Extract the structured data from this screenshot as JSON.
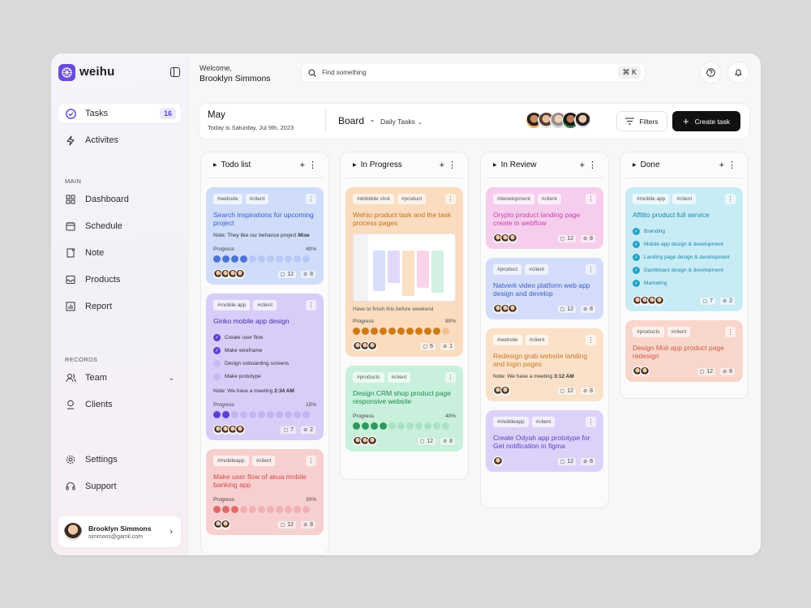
{
  "app": {
    "brand": "weihu"
  },
  "nav": {
    "tasks": {
      "label": "Tasks",
      "badge": "16"
    },
    "activities": {
      "label": "Activites"
    },
    "main_label": "MAIN",
    "main": [
      "Dashboard",
      "Schedule",
      "Note",
      "Products",
      "Report"
    ],
    "records_label": "RECORDS",
    "team": "Team",
    "clients": "Clients",
    "settings": "Settings",
    "support": "Support"
  },
  "user": {
    "name": "Brooklyn Simmons",
    "email": "simmons@gamil.com",
    "greeting": "Welcome,"
  },
  "search": {
    "placeholder": "Find something",
    "shortcut": "⌘ K"
  },
  "board": {
    "month": "May",
    "today": "Today is Saturday, Jul 9th, 2023",
    "title": "Board",
    "dash": "-",
    "view": "Daily Tasks",
    "filters": "Filters",
    "create": "Create task"
  },
  "colors": {
    "accent": "#6a4cdc",
    "dark": "#111111"
  },
  "columns": [
    {
      "title": "Todo list",
      "cards": [
        {
          "tags": [
            "#website",
            "#client"
          ],
          "title": "Search inspirations for upcoming project",
          "note_label": "Note:",
          "note": "They like our behance project",
          "note_bold": "Mise",
          "progress_label": "Progress",
          "progress": "40%",
          "comments": "12",
          "files": "8"
        },
        {
          "tags": [
            "#mobile app",
            "#client"
          ],
          "title": "Ginko mobile app design",
          "checks": [
            {
              "t": "Create user flow",
              "done": true
            },
            {
              "t": "Make wireframe",
              "done": true
            },
            {
              "t": "Design onboarding screens",
              "done": false
            },
            {
              "t": "Make prototype",
              "done": false
            }
          ],
          "note_label": "Note:",
          "note": "We have a meeting",
          "note_bold": "2:34 AM",
          "progress_label": "Progress",
          "progress": "15%",
          "comments": "7",
          "files": "2"
        },
        {
          "tags": [
            "#mobileapp",
            "#client"
          ],
          "title": "Make user flow of akua mobile banking app",
          "progress_label": "Progress",
          "progress": "30%",
          "comments": "12",
          "files": "8"
        }
      ]
    },
    {
      "title": "In Progress",
      "cards": [
        {
          "tags": [
            "#dribbble shot",
            "#product"
          ],
          "title": "Wehiu product task and the task process pages",
          "finish": "Have to finish this before weekend",
          "progress_label": "Progress",
          "progress": "90%",
          "comments": "6",
          "files": "1"
        },
        {
          "tags": [
            "#products",
            "#client"
          ],
          "title": "Design CRM shop product page responsive website",
          "progress_label": "Progress",
          "progress": "40%",
          "comments": "12",
          "files": "8"
        }
      ]
    },
    {
      "title": "In Review",
      "cards": [
        {
          "tags": [
            "#development",
            "#client"
          ],
          "title": "Orypto product landing  page create in webflow",
          "comments": "12",
          "files": "8"
        },
        {
          "tags": [
            "#product",
            "#client"
          ],
          "title": "Natverk video platform web app design and develop",
          "comments": "12",
          "files": "8"
        },
        {
          "tags": [
            "#website",
            "#client"
          ],
          "title": "Redesign grab website landing and login pages",
          "note_label": "Note:",
          "note": "We have a meeting",
          "note_bold": "3:12 AM",
          "comments": "12",
          "files": "8"
        },
        {
          "tags": [
            "#mobileapp",
            "#client"
          ],
          "title": "Create Odyah app prototype for Get notification in figma",
          "comments": "12",
          "files": "8"
        }
      ]
    },
    {
      "title": "Done",
      "cards": [
        {
          "tags": [
            "#mobile app",
            "#client"
          ],
          "title": "Affitto product full service",
          "checks": [
            {
              "t": "Branding",
              "done": true
            },
            {
              "t": "Mobile app design & development",
              "done": true
            },
            {
              "t": "Landing page design & development",
              "done": true
            },
            {
              "t": "Dashboard design & development",
              "done": true
            },
            {
              "t": "Marketing",
              "done": true
            }
          ],
          "comments": "7",
          "files": "2"
        },
        {
          "tags": [
            "#products",
            "#client"
          ],
          "title": "Design Moli app product page redesign",
          "comments": "12",
          "files": "8"
        }
      ]
    }
  ],
  "progress_values": {
    "c0_0": 0.4,
    "c0_1": 0.15,
    "c0_2": 0.3,
    "c1_0": 0.9,
    "c1_1": 0.4
  }
}
